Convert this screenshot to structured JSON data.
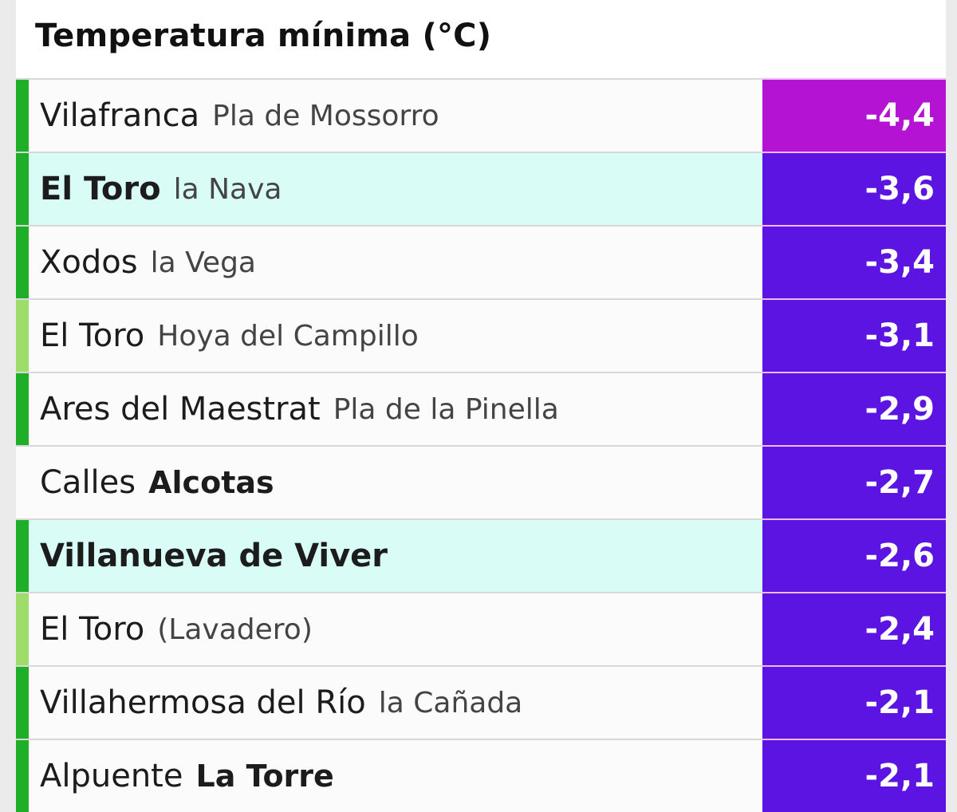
{
  "title": "Temperatura mínima (°C)",
  "colors": {
    "bar_dark_green": "#1fae27",
    "bar_light_green": "#9edd6a",
    "value_magenta": "#b513d4",
    "value_purple": "#5b14e2",
    "highlight_bg": "#d9fcf6"
  },
  "rows": [
    {
      "main": "Vilafranca",
      "main_bold": false,
      "sub": "Pla de Mossorro",
      "sub_bold": false,
      "value": "-4,4",
      "bar": "dark",
      "highlight": false,
      "value_color": "magenta"
    },
    {
      "main": "El Toro",
      "main_bold": true,
      "sub": "la Nava",
      "sub_bold": false,
      "value": "-3,6",
      "bar": "dark",
      "highlight": true,
      "value_color": "purple"
    },
    {
      "main": "Xodos",
      "main_bold": false,
      "sub": "la Vega",
      "sub_bold": false,
      "value": "-3,4",
      "bar": "dark",
      "highlight": false,
      "value_color": "purple"
    },
    {
      "main": "El Toro",
      "main_bold": false,
      "sub": "Hoya del Campillo",
      "sub_bold": false,
      "value": "-3,1",
      "bar": "light",
      "highlight": false,
      "value_color": "purple"
    },
    {
      "main": "Ares del Maestrat",
      "main_bold": false,
      "sub": "Pla de la Pinella",
      "sub_bold": false,
      "value": "-2,9",
      "bar": "dark",
      "highlight": false,
      "value_color": "purple"
    },
    {
      "main": "Calles",
      "main_bold": false,
      "sub": "Alcotas",
      "sub_bold": true,
      "value": "-2,7",
      "bar": "none",
      "highlight": false,
      "value_color": "purple"
    },
    {
      "main": "Villanueva de Viver",
      "main_bold": true,
      "sub": "",
      "sub_bold": false,
      "value": "-2,6",
      "bar": "dark",
      "highlight": true,
      "value_color": "purple"
    },
    {
      "main": "El Toro",
      "main_bold": false,
      "sub": "(Lavadero)",
      "sub_bold": false,
      "value": "-2,4",
      "bar": "light",
      "highlight": false,
      "value_color": "purple"
    },
    {
      "main": "Villahermosa del Río",
      "main_bold": false,
      "sub": "la Cañada",
      "sub_bold": false,
      "value": "-2,1",
      "bar": "dark",
      "highlight": false,
      "value_color": "purple"
    },
    {
      "main": "Alpuente",
      "main_bold": false,
      "sub": "La Torre",
      "sub_bold": true,
      "value": "-2,1",
      "bar": "dark",
      "highlight": false,
      "value_color": "purple"
    }
  ]
}
